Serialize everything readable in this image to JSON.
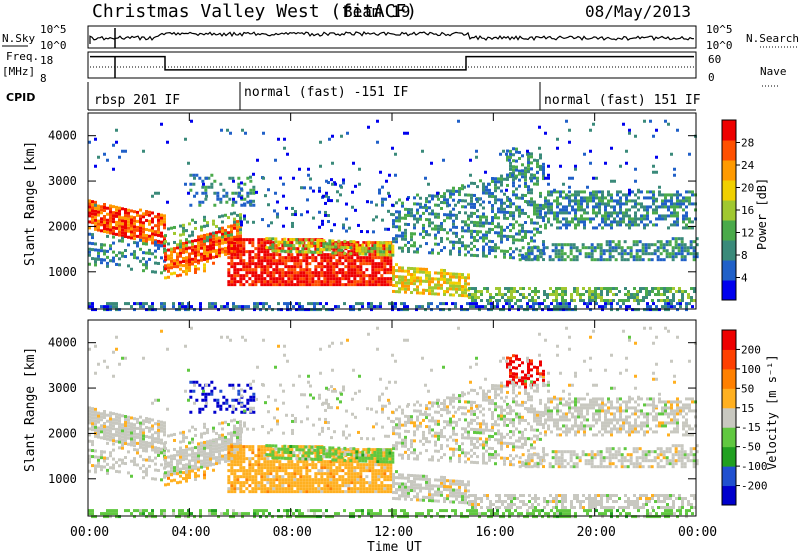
{
  "header": {
    "title": "Christmas Valley West (fitACF)",
    "beam": "Beam 19",
    "date": "08/May/2013"
  },
  "params": {
    "nsky_label": "N.Sky",
    "nsky_ticks": [
      "10^5",
      "10^0"
    ],
    "freq_label_1": "Freq.",
    "freq_label_2": "[MHz]",
    "freq_ticks": [
      "18",
      "8"
    ],
    "nsearch_label": "N.Search",
    "nsearch_ticks": [
      "10^5",
      "10^0"
    ],
    "nave_label": "Nave",
    "nave_ticks": [
      "60",
      "0"
    ],
    "cpid_label": "CPID",
    "cpid_segments": [
      "rbsp 201 IF",
      "normal (fast) -151 IF",
      "normal (fast) 151 IF"
    ]
  },
  "chart_data": [
    {
      "type": "heatmap",
      "name": "power",
      "ylabel": "Slant Range [km]",
      "yticks": [
        "4000",
        "3000",
        "2000",
        "1000"
      ],
      "ylim": [
        180,
        4500
      ],
      "xlim": [
        "00:00",
        "24:00"
      ],
      "colorbar_label": "Power [dB]",
      "colorbar_ticks": [
        "28",
        "24",
        "20",
        "16",
        "12",
        "8",
        "4"
      ],
      "colors": [
        "#0000ee",
        "#2060c8",
        "#3a8a7a",
        "#4aaa4a",
        "#a0c830",
        "#f0d000",
        "#ff9a00",
        "#ff5000",
        "#ee0000"
      ]
    },
    {
      "type": "heatmap",
      "name": "velocity",
      "ylabel": "Slant Range [km]",
      "yticks": [
        "4000",
        "3000",
        "2000",
        "1000"
      ],
      "ylim": [
        180,
        4500
      ],
      "xlim": [
        "00:00",
        "24:00"
      ],
      "colorbar_label": "Velocity [m s⁻¹]",
      "colorbar_ticks": [
        "200",
        "100",
        "50",
        "15",
        "-15",
        "-50",
        "-100",
        "-200"
      ],
      "colors": [
        "#0000cc",
        "#2050d0",
        "#20a020",
        "#60c840",
        "#c8c8c0",
        "#ffb020",
        "#ff8000",
        "#ff4000",
        "#ee0000"
      ]
    }
  ],
  "xaxis": {
    "ticks": [
      "00:00",
      "04:00",
      "08:00",
      "12:00",
      "16:00",
      "20:00",
      "00:00"
    ],
    "label": "Time UT"
  }
}
